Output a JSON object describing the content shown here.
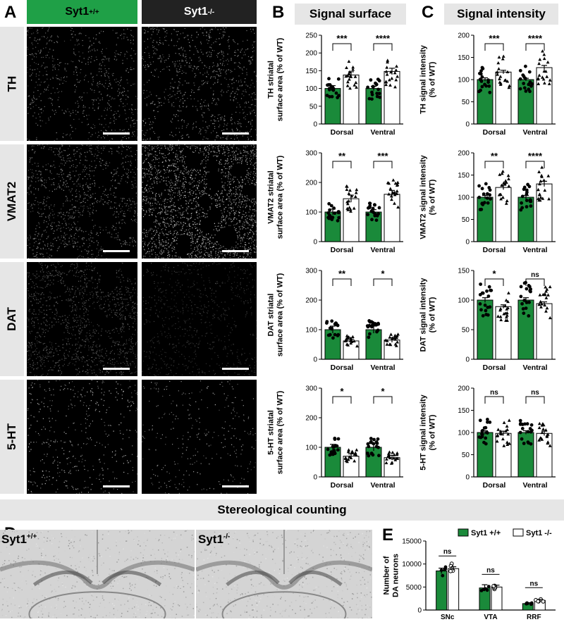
{
  "panelA": {
    "letter": "A",
    "col_wt": "Syt1",
    "col_wt_sup": "+/+",
    "col_ko": "Syt1",
    "col_ko_sup": "-/-",
    "rows": [
      "TH",
      "VMAT2",
      "DAT",
      "5-HT"
    ]
  },
  "panelB": {
    "letter": "B",
    "title": "Signal surface"
  },
  "panelC": {
    "letter": "C",
    "title": "Signal intensity"
  },
  "stereology": {
    "title": "Stereological counting"
  },
  "panelD": {
    "letter": "D",
    "wt_label": "Syt1",
    "wt_sup": "+/+",
    "ko_label": "Syt1",
    "ko_sup": "-/-"
  },
  "panelE": {
    "letter": "E"
  },
  "colors": {
    "wt_fill": "#1a8a3a",
    "header_green": "#1fa047",
    "header_dark": "#222222",
    "band": "#e6e6e6"
  },
  "chart_data": [
    {
      "id": "B1",
      "type": "bar",
      "ylabel": [
        "TH striatal",
        "surface area (% of WT)"
      ],
      "ylim": [
        0,
        250
      ],
      "yticks": [
        0,
        50,
        100,
        150,
        200,
        250
      ],
      "categories": [
        "Dorsal",
        "Ventral"
      ],
      "series": [
        {
          "values": [
            100,
            100
          ]
        },
        {
          "values": [
            138,
            148
          ]
        }
      ],
      "errors": [
        [
          8,
          6
        ],
        [
          9,
          9
        ]
      ],
      "sig": [
        "***",
        "****"
      ]
    },
    {
      "id": "B2",
      "type": "bar",
      "ylabel": [
        "VMAT2 striatal",
        "surface area (% of WT)"
      ],
      "ylim": [
        0,
        300
      ],
      "yticks": [
        0,
        100,
        200,
        300
      ],
      "categories": [
        "Dorsal",
        "Ventral"
      ],
      "series": [
        {
          "values": [
            100,
            100
          ]
        },
        {
          "values": [
            145,
            160
          ]
        }
      ],
      "errors": [
        [
          10,
          8
        ],
        [
          12,
          13
        ]
      ],
      "sig": [
        "**",
        "***"
      ]
    },
    {
      "id": "B3",
      "type": "bar",
      "ylabel": [
        "DAT striatal",
        "surface area (% of WT)"
      ],
      "ylim": [
        0,
        300
      ],
      "yticks": [
        0,
        100,
        200,
        300
      ],
      "categories": [
        "Dorsal",
        "Ventral"
      ],
      "series": [
        {
          "values": [
            100,
            100
          ]
        },
        {
          "values": [
            62,
            65
          ]
        }
      ],
      "errors": [
        [
          12,
          12
        ],
        [
          6,
          8
        ]
      ],
      "sig": [
        "**",
        "*"
      ]
    },
    {
      "id": "B4",
      "type": "bar",
      "ylabel": [
        "5-HT striatal",
        "surface area (% of WT)"
      ],
      "ylim": [
        0,
        300
      ],
      "yticks": [
        0,
        100,
        200,
        300
      ],
      "categories": [
        "Dorsal",
        "Ventral"
      ],
      "series": [
        {
          "values": [
            100,
            100
          ]
        },
        {
          "values": [
            70,
            65
          ]
        }
      ],
      "errors": [
        [
          10,
          12
        ],
        [
          8,
          8
        ]
      ],
      "sig": [
        "*",
        "*"
      ]
    },
    {
      "id": "C1",
      "type": "bar",
      "ylabel": [
        "TH signal intensity",
        "(% of WT)"
      ],
      "ylim": [
        0,
        200
      ],
      "yticks": [
        0,
        50,
        100,
        150,
        200
      ],
      "categories": [
        "Dorsal",
        "Ventral"
      ],
      "series": [
        {
          "values": [
            100,
            100
          ]
        },
        {
          "values": [
            117,
            127
          ]
        }
      ],
      "errors": [
        [
          4,
          3
        ],
        [
          4,
          5
        ]
      ],
      "sig": [
        "***",
        "****"
      ]
    },
    {
      "id": "C2",
      "type": "bar",
      "ylabel": [
        "VMAT2 signal intensity",
        "(% of WT)"
      ],
      "ylim": [
        0,
        200
      ],
      "yticks": [
        0,
        50,
        100,
        150,
        200
      ],
      "categories": [
        "Dorsal",
        "Ventral"
      ],
      "series": [
        {
          "values": [
            100,
            100
          ]
        },
        {
          "values": [
            122,
            130
          ]
        }
      ],
      "errors": [
        [
          4,
          4
        ],
        [
          5,
          6
        ]
      ],
      "sig": [
        "**",
        "****"
      ]
    },
    {
      "id": "C3",
      "type": "bar",
      "ylabel": [
        "DAT signal intensity",
        "(% of WT)"
      ],
      "ylim": [
        0,
        150
      ],
      "yticks": [
        0,
        50,
        100,
        150
      ],
      "categories": [
        "Dorsal",
        "Ventral"
      ],
      "series": [
        {
          "values": [
            100,
            100
          ]
        },
        {
          "values": [
            89,
            94
          ]
        }
      ],
      "errors": [
        [
          4,
          4
        ],
        [
          3,
          3
        ]
      ],
      "sig": [
        "*",
        "ns"
      ]
    },
    {
      "id": "C4",
      "type": "bar",
      "ylabel": [
        "5-HT signal intensity",
        "(% of WT)"
      ],
      "ylim": [
        0,
        200
      ],
      "yticks": [
        0,
        50,
        100,
        150,
        200
      ],
      "categories": [
        "Dorsal",
        "Ventral"
      ],
      "series": [
        {
          "values": [
            100,
            100
          ]
        },
        {
          "values": [
            98,
            98
          ]
        }
      ],
      "errors": [
        [
          4,
          4
        ],
        [
          5,
          5
        ]
      ],
      "sig": [
        "ns",
        "ns"
      ]
    },
    {
      "id": "E",
      "type": "bar",
      "ylabel": [
        "Number of",
        "DA neurons"
      ],
      "ylim": [
        0,
        15000
      ],
      "yticks": [
        0,
        5000,
        10000,
        15000
      ],
      "categories": [
        "SNc",
        "VTA",
        "RRF"
      ],
      "series": [
        {
          "name": "Syt1 +/+",
          "values": [
            8500,
            4800,
            1400
          ]
        },
        {
          "name": "Syt1 -/-",
          "values": [
            9000,
            5000,
            2100
          ]
        }
      ],
      "errors": [
        [
          600,
          700,
          200
        ],
        [
          400,
          400,
          200
        ]
      ],
      "sig": [
        "ns",
        "ns",
        "ns"
      ],
      "legend": "top"
    }
  ]
}
